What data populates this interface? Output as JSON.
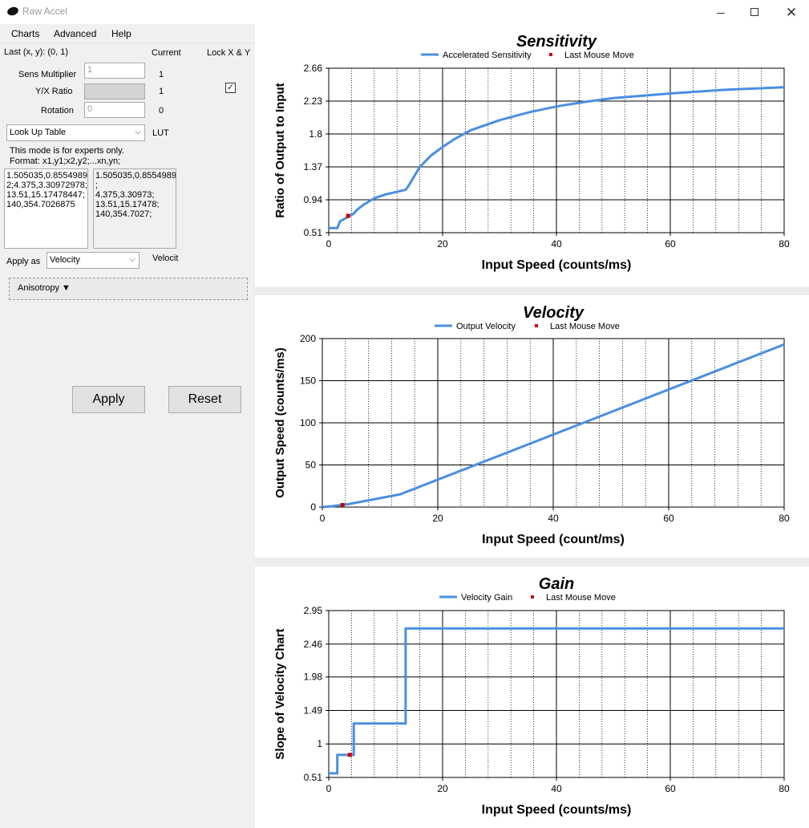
{
  "window": {
    "title": "Raw Accel"
  },
  "menu": [
    {
      "label": "Charts"
    },
    {
      "label": "Advanced"
    },
    {
      "label": "Help"
    }
  ],
  "header": {
    "last_xy": "Last (x, y): (0, 1)",
    "current": "Current",
    "lock": "Lock X & Y"
  },
  "rows": {
    "sens": {
      "label": "Sens Multiplier",
      "value": "1",
      "current": "1"
    },
    "ratio": {
      "label": "Y/X Ratio",
      "value": "",
      "current": "1"
    },
    "rotation": {
      "label": "Rotation",
      "value": "0",
      "current": "0"
    }
  },
  "mode": {
    "selected": "Look Up Table",
    "current": "LUT"
  },
  "lut_note": {
    "line1": "This mode is for experts only.",
    "line2": "Format: x1,y1;x2,y2;...xn,yn;"
  },
  "lut_input": "1.505035,0.8554989\n2;4.375,3.30972978;\n13.51,15.17478447;\n140,354.7026875",
  "lut_active": "1.505035,0.8554989\n;\n4.375,3.30973;\n13.51,15.17478;\n140,354.7027;",
  "apply_as": {
    "label": "Apply as",
    "selected": "Velocity",
    "current": "Velocit"
  },
  "anisotropy": "Anisotropy ▼",
  "buttons": {
    "apply": "Apply",
    "reset": "Reset"
  },
  "colors": {
    "series": "#4a8fe0",
    "marker": "#cc0000",
    "grid": "#000000"
  },
  "chart_data": [
    {
      "type": "line",
      "title": "Sensitivity",
      "xlabel": "Input Speed (counts/ms)",
      "ylabel": "Ratio of Output to Input",
      "series": [
        {
          "name": "Accelerated Sensitivity",
          "x": [
            0,
            1.5,
            2,
            3,
            4.4,
            5,
            6,
            8,
            10,
            13.5,
            14,
            16,
            18,
            20,
            22,
            25,
            30,
            35,
            40,
            45,
            50,
            60,
            70,
            80
          ],
          "y": [
            0.57,
            0.57,
            0.66,
            0.7,
            0.76,
            0.81,
            0.87,
            0.96,
            1.01,
            1.07,
            1.12,
            1.37,
            1.52,
            1.63,
            1.73,
            1.85,
            1.98,
            2.08,
            2.16,
            2.22,
            2.27,
            2.33,
            2.38,
            2.41
          ]
        }
      ],
      "marker": {
        "name": "Last Mouse Move",
        "x": 3.4,
        "y": 0.73
      },
      "xticks": [
        "0",
        "20",
        "40",
        "60",
        "80"
      ],
      "yticks": [
        "0.51",
        "0.94",
        "1.37",
        "1.8",
        "2.23",
        "2.66"
      ],
      "xlim": [
        0,
        80
      ],
      "ylim": [
        0.51,
        2.66
      ]
    },
    {
      "type": "line",
      "title": "Velocity",
      "xlabel": "Input Speed (count/ms)",
      "ylabel": "Output Speed (counts/ms)",
      "series": [
        {
          "name": "Output Velocity",
          "x": [
            0,
            1.5,
            4.4,
            13.5,
            80
          ],
          "y": [
            0,
            0.86,
            3.31,
            15.17,
            193
          ]
        }
      ],
      "marker": {
        "name": "Last Mouse Move",
        "x": 3.5,
        "y": 2.4
      },
      "xticks": [
        "0",
        "20",
        "40",
        "60",
        "80"
      ],
      "yticks": [
        "0",
        "50",
        "100",
        "150",
        "200"
      ],
      "xlim": [
        0,
        80
      ],
      "ylim": [
        0,
        200
      ]
    },
    {
      "type": "line",
      "title": "Gain",
      "xlabel": "Input Speed (counts/ms)",
      "ylabel": "Slope of Velocity Chart",
      "series": [
        {
          "name": "Velocity Gain",
          "x": [
            0,
            1.5,
            1.5,
            4.4,
            4.4,
            13.5,
            13.5,
            80
          ],
          "y": [
            0.57,
            0.57,
            0.84,
            0.84,
            1.3,
            1.3,
            2.69,
            2.69
          ]
        }
      ],
      "marker": {
        "name": "Last Mouse Move",
        "x": 3.7,
        "y": 0.84
      },
      "xticks": [
        "0",
        "20",
        "40",
        "60",
        "80"
      ],
      "yticks": [
        "0.51",
        "1",
        "1.49",
        "1.98",
        "2.46",
        "2.95"
      ],
      "xlim": [
        0,
        80
      ],
      "ylim": [
        0.51,
        2.95
      ]
    }
  ]
}
